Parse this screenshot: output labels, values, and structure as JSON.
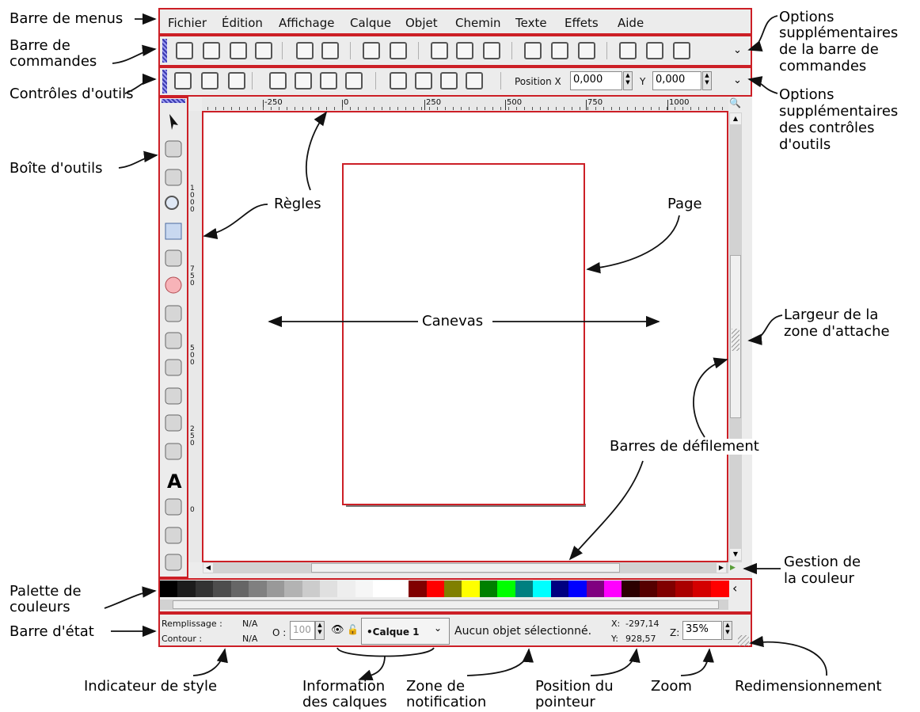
{
  "menu": [
    "Fichier",
    "Édition",
    "Affichage",
    "Calque",
    "Objet",
    "Chemin",
    "Texte",
    "Effets",
    "Aide"
  ],
  "tool_controls": {
    "pos_x_label": "Position X",
    "pos_x_value": "0,000",
    "y_label": "Y",
    "y_value": "0,000"
  },
  "ruler": {
    "h_ticks": [
      "-250",
      "0",
      "250",
      "500",
      "750",
      "1000"
    ],
    "v_ticks": [
      "1000",
      "750",
      "500",
      "250",
      "0"
    ]
  },
  "palette_colors": [
    "#000000",
    "#1c1c1c",
    "#333333",
    "#4d4d4d",
    "#666666",
    "#808080",
    "#999999",
    "#b3b3b3",
    "#cccccc",
    "#e0e0e0",
    "#eeeeee",
    "#f6f6f6",
    "#ffffff",
    "#ffffff",
    "#800000",
    "#ff0000",
    "#808000",
    "#ffff00",
    "#008000",
    "#00ff00",
    "#008080",
    "#00ffff",
    "#000080",
    "#0000ff",
    "#800080",
    "#ff00ff",
    "#2b0000",
    "#550000",
    "#800000",
    "#aa0000",
    "#d40000",
    "#ff0000"
  ],
  "status": {
    "fill_label": "Remplissage :",
    "fill_value": "N/A",
    "stroke_label": "Contour :",
    "stroke_value": "N/A",
    "opacity_label": "O :",
    "opacity_value": "100",
    "layer": "•Calque 1",
    "notification": "Aucun objet sélectionné.",
    "x_label": "X:",
    "x_value": "-297,14",
    "y_label": "Y:",
    "y_value": "928,57",
    "zoom_label": "Z:",
    "zoom_value": "35%"
  },
  "annotations": {
    "menubar": "Barre de menus",
    "commands_line1": "Barre de",
    "commands_line2": "commandes",
    "toolcontrols": "Contrôles d'outils",
    "toolbox": "Boîte d'outils",
    "palette_line1": "Palette de",
    "palette_line2": "couleurs",
    "statusbar": "Barre d'état",
    "extra_cmd": [
      "Options",
      "supplémentaires",
      "de la barre de",
      "commandes"
    ],
    "extra_ctrl": [
      "Options",
      "supplémentaires",
      "des contrôles",
      "d'outils"
    ],
    "snap_line1": "Largeur de la",
    "snap_line2": "zone d'attache",
    "color_mgmt_line1": "Gestion de",
    "color_mgmt_line2": "la couleur",
    "rulers": "Règles",
    "page": "Page",
    "canvas": "Canevas",
    "scrollbars": "Barres de défilement",
    "style_indicator": "Indicateur de style",
    "layers_line1": "Information",
    "layers_line2": "des calques",
    "notif_line1": "Zone de",
    "notif_line2": "notification",
    "pointer_line1": "Position du",
    "pointer_line2": "pointeur",
    "zoom": "Zoom",
    "resize": "Redimensionnement"
  }
}
